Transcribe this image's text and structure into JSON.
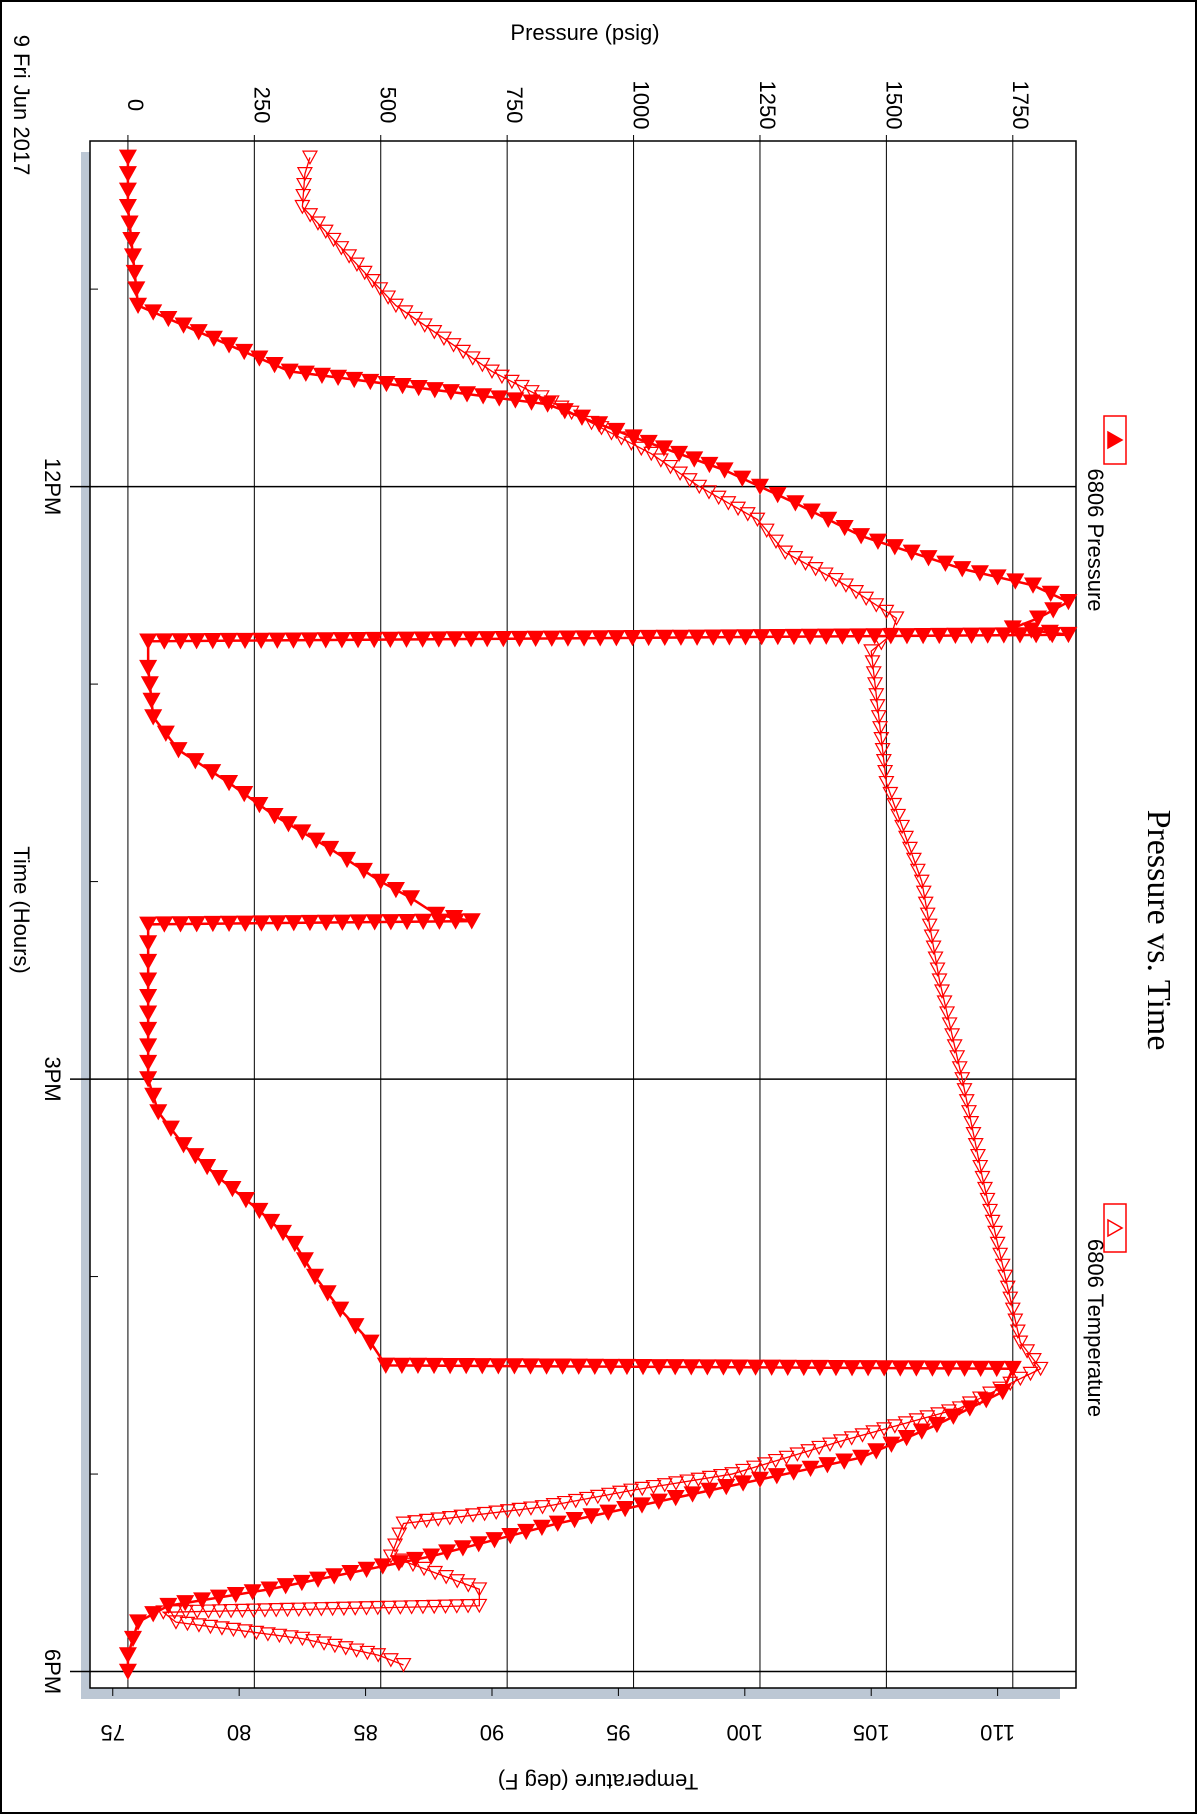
{
  "chart_data": {
    "type": "line",
    "title": "Pressure vs. Time",
    "date_label": "9 Fri Jun 2017",
    "xlabel": "Time (Hours)",
    "x_ticks": [
      "12PM",
      "3PM",
      "6PM"
    ],
    "y_left_label": "Pressure (psig)",
    "y_left_range": [
      -75,
      1875
    ],
    "y_left_ticks": [
      "0",
      "250",
      "500",
      "750",
      "1000",
      "1250",
      "1500",
      "1750"
    ],
    "y_right_label": "Temperature (deg F)",
    "y_right_range": [
      74.1,
      113.1
    ],
    "y_right_ticks": [
      "75",
      "80",
      "85",
      "90",
      "95",
      "100",
      "105",
      "110"
    ],
    "grid": true,
    "orientation": "rotated 90 degrees clockwise",
    "series": [
      {
        "name": "6806 Pressure",
        "marker": "filled-triangle",
        "axis": "pressure",
        "color": "#ff0000",
        "points": [
          [
            "10:20",
            0
          ],
          [
            "10:25",
            0
          ],
          [
            "10:35",
            0
          ],
          [
            "11:05",
            20
          ],
          [
            "11:25",
            320
          ],
          [
            "11:35",
            830
          ],
          [
            "11:45",
            1000
          ],
          [
            "11:55",
            1180
          ],
          [
            "12:05",
            1320
          ],
          [
            "12:15",
            1450
          ],
          [
            "12:25",
            1650
          ],
          [
            "12:30",
            1790
          ],
          [
            "12:35",
            1860
          ],
          [
            "12:40",
            1800
          ],
          [
            "12:43",
            1750
          ],
          [
            "12:45",
            1860
          ],
          [
            "12:47",
            40
          ],
          [
            "12:55",
            40
          ],
          [
            "13:10",
            50
          ],
          [
            "13:20",
            100
          ],
          [
            "13:30",
            200
          ],
          [
            "13:40",
            290
          ],
          [
            "13:50",
            400
          ],
          [
            "14:00",
            500
          ],
          [
            "14:05",
            560
          ],
          [
            "14:10",
            610
          ],
          [
            "14:12",
            680
          ],
          [
            "14:13",
            40
          ],
          [
            "14:30",
            40
          ],
          [
            "15:00",
            40
          ],
          [
            "15:10",
            60
          ],
          [
            "15:20",
            110
          ],
          [
            "15:30",
            180
          ],
          [
            "15:40",
            260
          ],
          [
            "15:50",
            330
          ],
          [
            "16:00",
            370
          ],
          [
            "16:10",
            420
          ],
          [
            "16:20",
            480
          ],
          [
            "16:27",
            510
          ],
          [
            "16:28",
            1750
          ],
          [
            "16:35",
            1730
          ],
          [
            "16:45",
            1600
          ],
          [
            "16:55",
            1450
          ],
          [
            "17:05",
            1150
          ],
          [
            "17:15",
            850
          ],
          [
            "17:25",
            600
          ],
          [
            "17:35",
            280
          ],
          [
            "17:40",
            80
          ],
          [
            "17:45",
            20
          ],
          [
            "17:55",
            0
          ],
          [
            "18:00",
            0
          ]
        ]
      },
      {
        "name": "6806 Temperature",
        "marker": "hollow-triangle",
        "axis": "temperature",
        "color": "#ff0000",
        "points": [
          [
            "10:20",
            82.8
          ],
          [
            "10:25",
            82.6
          ],
          [
            "10:35",
            82.5
          ],
          [
            "11:05",
            86.2
          ],
          [
            "11:25",
            90.0
          ],
          [
            "11:50",
            96.3
          ],
          [
            "12:00",
            98.2
          ],
          [
            "12:10",
            100.5
          ],
          [
            "12:20",
            101.6
          ],
          [
            "12:30",
            104.0
          ],
          [
            "12:40",
            106.0
          ],
          [
            "12:45",
            105.8
          ],
          [
            "12:50",
            105.0
          ],
          [
            "13:30",
            105.6
          ],
          [
            "14:00",
            107.0
          ],
          [
            "14:30",
            107.7
          ],
          [
            "15:00",
            108.6
          ],
          [
            "15:30",
            109.4
          ],
          [
            "16:00",
            110.3
          ],
          [
            "16:20",
            110.9
          ],
          [
            "16:28",
            111.7
          ],
          [
            "16:40",
            108.5
          ],
          [
            "16:50",
            103.8
          ],
          [
            "17:00",
            99.5
          ],
          [
            "17:05",
            95.5
          ],
          [
            "17:10",
            92.0
          ],
          [
            "17:15",
            86.5
          ],
          [
            "17:25",
            86.0
          ],
          [
            "17:35",
            89.5
          ],
          [
            "17:40",
            89.5
          ],
          [
            "17:42",
            77.0
          ],
          [
            "17:45",
            77.5
          ],
          [
            "17:50",
            82.5
          ],
          [
            "17:55",
            85.5
          ],
          [
            "17:58",
            86.5
          ]
        ]
      }
    ]
  }
}
